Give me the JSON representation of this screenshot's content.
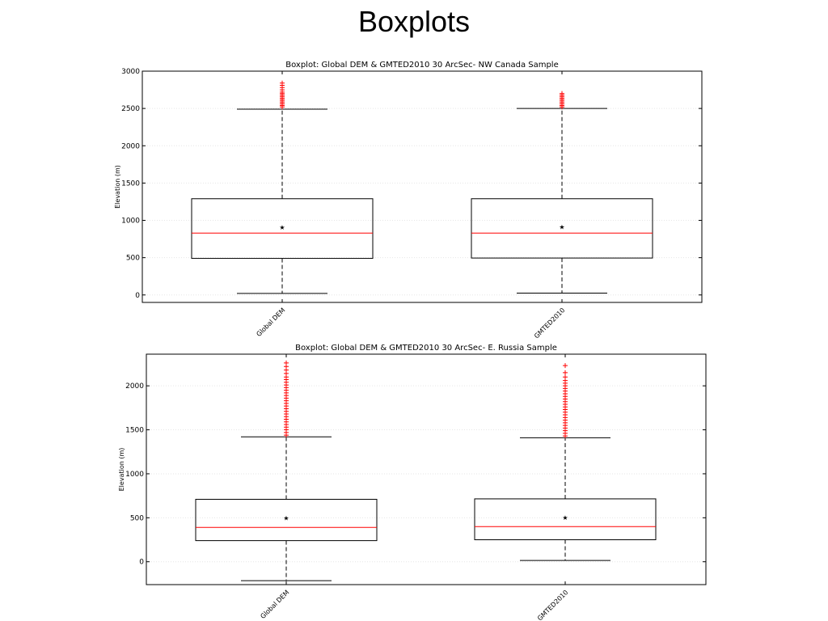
{
  "slide": {
    "title": "Boxplots"
  },
  "chart_data": [
    {
      "type": "boxplot",
      "title": "Boxplot: Global DEM & GMTED2010 30 ArcSec- NW Canada Sample",
      "xlabel": "",
      "ylabel": "Elevation (m)",
      "ylim": [
        -100,
        3000
      ],
      "yticks": [
        0,
        500,
        1000,
        1500,
        2000,
        2500,
        3000
      ],
      "categories": [
        "Global DEM",
        "GMTED2010"
      ],
      "grid": "horizontal-dotted",
      "boxes": [
        {
          "whisker_low": 20,
          "q1": 490,
          "median": 830,
          "mean": 910,
          "q3": 1290,
          "whisker_high": 2490,
          "outliers": [
            2520,
            2540,
            2560,
            2580,
            2600,
            2620,
            2640,
            2660,
            2680,
            2700,
            2720,
            2750,
            2780,
            2810,
            2840
          ]
        },
        {
          "whisker_low": 25,
          "q1": 495,
          "median": 830,
          "mean": 915,
          "q3": 1290,
          "whisker_high": 2500,
          "outliers": [
            2520,
            2540,
            2560,
            2580,
            2600,
            2620,
            2640,
            2660,
            2680,
            2700
          ]
        }
      ],
      "colors": {
        "median": "#ff0000",
        "mean": "#0000ff",
        "outliers": "#ff0000",
        "box": "#000000"
      }
    },
    {
      "type": "boxplot",
      "title": "Boxplot: Global DEM & GMTED2010 30 ArcSec- E. Russia Sample",
      "xlabel": "",
      "ylabel": "Elevation (m)",
      "ylim": [
        -260,
        2360
      ],
      "yticks": [
        0,
        500,
        1000,
        1500,
        2000
      ],
      "categories": [
        "Global DEM",
        "GMTED2010"
      ],
      "grid": "horizontal-dotted",
      "boxes": [
        {
          "whisker_low": -215,
          "q1": 240,
          "median": 390,
          "mean": 500,
          "q3": 710,
          "whisker_high": 1420,
          "outliers": [
            1440,
            1470,
            1500,
            1530,
            1560,
            1590,
            1620,
            1650,
            1680,
            1710,
            1740,
            1770,
            1800,
            1830,
            1860,
            1890,
            1920,
            1950,
            1980,
            2010,
            2040,
            2070,
            2100,
            2140,
            2180,
            2220,
            2260
          ]
        },
        {
          "whisker_low": 15,
          "q1": 250,
          "median": 400,
          "mean": 505,
          "q3": 715,
          "whisker_high": 1410,
          "outliers": [
            1430,
            1460,
            1490,
            1520,
            1550,
            1580,
            1610,
            1640,
            1670,
            1700,
            1730,
            1760,
            1790,
            1820,
            1850,
            1880,
            1910,
            1940,
            1970,
            2000,
            2030,
            2060,
            2100,
            2150,
            2230
          ]
        }
      ],
      "colors": {
        "median": "#ff0000",
        "mean": "#0000ff",
        "outliers": "#ff0000",
        "box": "#000000"
      }
    }
  ]
}
